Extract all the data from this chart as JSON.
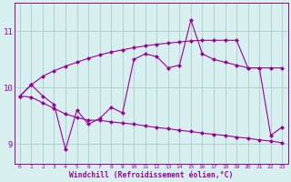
{
  "xlabel": "Windchill (Refroidissement éolien,°C)",
  "background_color": "#d8eff0",
  "line_color": "#990099",
  "grid_color": "#aacccc",
  "x_values": [
    0,
    1,
    2,
    3,
    4,
    5,
    6,
    7,
    8,
    9,
    10,
    11,
    12,
    13,
    14,
    15,
    16,
    17,
    18,
    19,
    20,
    21,
    22,
    23
  ],
  "y_main": [
    9.85,
    10.05,
    9.85,
    9.7,
    8.9,
    9.6,
    9.35,
    9.45,
    9.65,
    9.55,
    10.5,
    10.6,
    10.55,
    10.35,
    10.4,
    11.2,
    10.6,
    10.5,
    10.45,
    10.4,
    10.35,
    10.35,
    9.15,
    9.3
  ],
  "y_upper": [
    9.85,
    10.05,
    10.2,
    10.3,
    10.38,
    10.45,
    10.52,
    10.58,
    10.63,
    10.67,
    10.71,
    10.74,
    10.77,
    10.79,
    10.81,
    10.83,
    10.84,
    10.84,
    10.84,
    10.84,
    10.35,
    10.35,
    10.35,
    10.35
  ],
  "y_lower": [
    9.85,
    9.83,
    9.73,
    9.63,
    9.53,
    9.47,
    9.42,
    9.42,
    9.39,
    9.37,
    9.35,
    9.32,
    9.29,
    9.27,
    9.24,
    9.22,
    9.19,
    9.17,
    9.15,
    9.12,
    9.1,
    9.07,
    9.05,
    9.02
  ],
  "ylim": [
    8.65,
    11.5
  ],
  "yticks": [
    9,
    10,
    11
  ],
  "xticks": [
    0,
    1,
    2,
    3,
    4,
    5,
    6,
    7,
    8,
    9,
    10,
    11,
    12,
    13,
    14,
    15,
    16,
    17,
    18,
    19,
    20,
    21,
    22,
    23
  ],
  "markersize": 2.5,
  "linewidth": 0.8
}
